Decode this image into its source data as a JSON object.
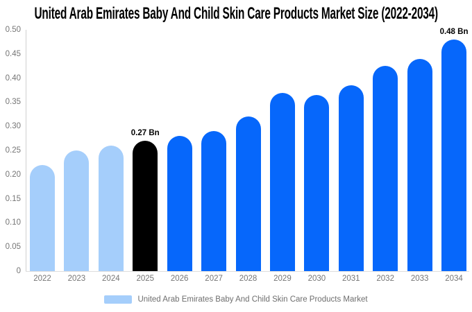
{
  "title": "United Arab Emirates Baby And Child Skin Care Products Market Size (2022-2034)",
  "chart_data": {
    "type": "bar",
    "title": "United Arab Emirates Baby And Child Skin Care Products Market Size (2022-2034)",
    "categories": [
      "2022",
      "2023",
      "2024",
      "2025",
      "2026",
      "2027",
      "2028",
      "2029",
      "2030",
      "2031",
      "2032",
      "2033",
      "2034"
    ],
    "values": [
      0.22,
      0.25,
      0.26,
      0.27,
      0.28,
      0.29,
      0.32,
      0.37,
      0.365,
      0.385,
      0.425,
      0.44,
      0.48
    ],
    "unit": "Bn",
    "value_labels": [
      "",
      "",
      "",
      "0.27 Bn",
      "",
      "",
      "",
      "",
      "",
      "",
      "",
      "",
      "0.48 Bn"
    ],
    "bar_colors": [
      "#a5cefb",
      "#a5cefb",
      "#a5cefb",
      "#000000",
      "#0667fb",
      "#0667fb",
      "#0667fb",
      "#0667fb",
      "#0667fb",
      "#0667fb",
      "#0667fb",
      "#0667fb",
      "#0667fb"
    ],
    "xlabel": "",
    "ylabel": "",
    "ylim": [
      0,
      0.5
    ],
    "yticks": [
      "0.50",
      "0.45",
      "0.40",
      "0.35",
      "0.30",
      "0.25",
      "0.20",
      "0.15",
      "0.10",
      "0.05",
      "0"
    ],
    "grid": false,
    "legend_position": "bottom",
    "legend": {
      "label": "United Arab Emirates Baby And Child Skin Care Products Market",
      "swatch_color": "#a5cefb"
    },
    "colors": {
      "historical": "#a5cefb",
      "base_year": "#000000",
      "forecast": "#0667fb",
      "tick_text": "#757575",
      "legend_text": "#6e6e6e",
      "axis_line": "#cfcfcf"
    }
  }
}
